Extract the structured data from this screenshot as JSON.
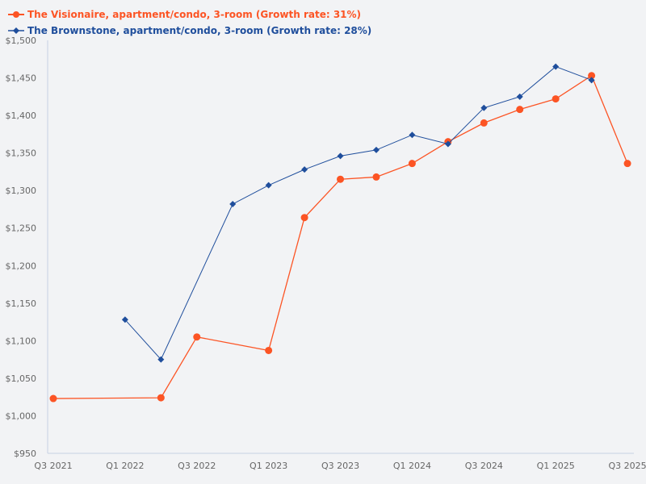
{
  "chart_data": {
    "type": "line",
    "title": "",
    "xlabel": "",
    "ylabel": "",
    "ylim": [
      950,
      1500
    ],
    "grid": false,
    "legend_position": "top-left",
    "x": [
      "Q3 2021",
      "Q4 2021",
      "Q1 2022",
      "Q2 2022",
      "Q3 2022",
      "Q4 2022",
      "Q1 2023",
      "Q2 2023",
      "Q3 2023",
      "Q4 2023",
      "Q1 2024",
      "Q2 2024",
      "Q3 2024",
      "Q4 2024",
      "Q1 2025",
      "Q2 2025",
      "Q3 2025"
    ],
    "x_tick_labels": [
      "Q3 2021",
      "Q1 2022",
      "Q3 2022",
      "Q1 2023",
      "Q3 2023",
      "Q1 2024",
      "Q3 2024",
      "Q1 2025",
      "Q3 2025"
    ],
    "y_tick_labels": [
      "$950",
      "$1,000",
      "$1,050",
      "$1,100",
      "$1,150",
      "$1,200",
      "$1,250",
      "$1,300",
      "$1,350",
      "$1,400",
      "$1,450",
      "$1,500"
    ],
    "series": [
      {
        "name": "The Visionaire, apartment/condo, 3-room (Growth rate: 31%)",
        "color": "#fc5424",
        "marker": "circle",
        "values": [
          1023,
          null,
          null,
          1024,
          1105,
          null,
          1087,
          1264,
          1315,
          1318,
          1336,
          1365,
          1390,
          1408,
          1422,
          1453,
          1336
        ]
      },
      {
        "name": "The Brownstone, apartment/condo, 3-room (Growth rate: 28%)",
        "color": "#1f4e9c",
        "marker": "diamond",
        "values": [
          null,
          null,
          1128,
          1075,
          null,
          1282,
          1307,
          1328,
          1346,
          1354,
          1374,
          1362,
          1410,
          1425,
          1465,
          1447,
          null
        ]
      }
    ]
  },
  "legend": {
    "items": [
      {
        "label": "The Visionaire, apartment/condo, 3-room (Growth rate: 31%)",
        "color": "#fc5424"
      },
      {
        "label": "The Brownstone, apartment/condo, 3-room (Growth rate: 28%)",
        "color": "#1f4e9c"
      }
    ]
  }
}
